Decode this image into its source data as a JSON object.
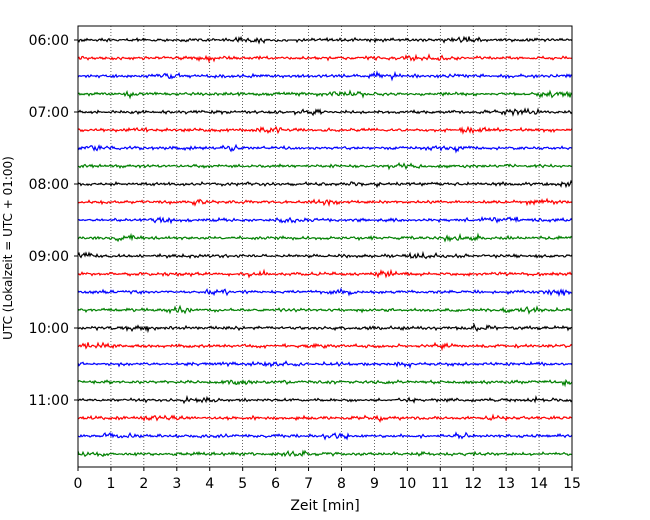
{
  "chart_data": {
    "type": "line",
    "xlabel": "Zeit  [min]",
    "ylabel": "UTC (Lokalzeit = UTC + 01:00)",
    "xlim": [
      0,
      15
    ],
    "x_ticks": [
      "0",
      "1",
      "2",
      "3",
      "4",
      "5",
      "6",
      "7",
      "8",
      "9",
      "10",
      "11",
      "12",
      "13",
      "14",
      "15"
    ],
    "y_ticks": [
      "06:00",
      "07:00",
      "08:00",
      "09:00",
      "10:00",
      "11:00"
    ],
    "grid": "vertical-dotted",
    "trace_colors": [
      "#000000",
      "#ff0000",
      "#0000ff",
      "#008000"
    ],
    "trace_count": 24,
    "trace_interval_min": 15,
    "trace_start": "06:00",
    "trace_end": "11:45"
  }
}
